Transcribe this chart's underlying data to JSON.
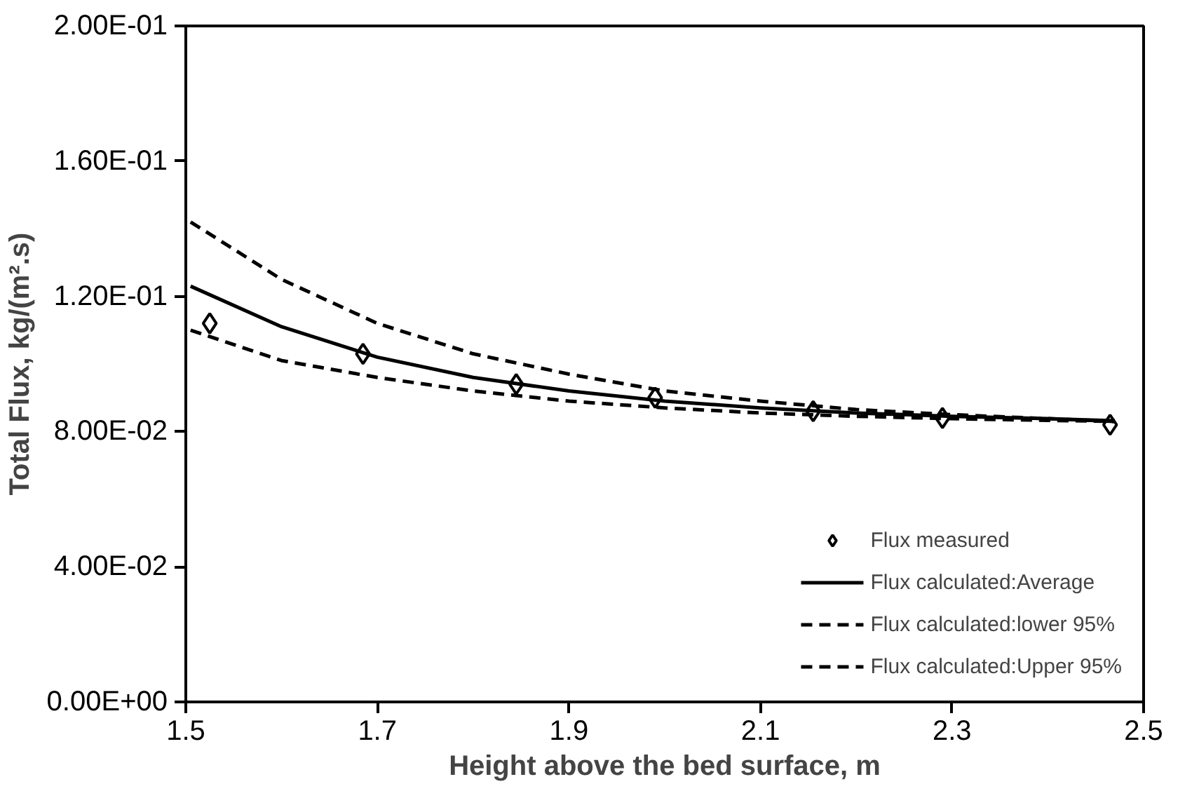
{
  "chart_data": {
    "type": "line",
    "xlabel": "Height above the bed surface, m",
    "ylabel": "Total Flux, kg/(m².s)",
    "xlim": [
      1.5,
      2.5
    ],
    "xticks": [
      1.5,
      1.7,
      1.9,
      2.1,
      2.3,
      2.5
    ],
    "ylim": [
      0,
      0.2
    ],
    "yticks": [
      {
        "value": 0,
        "label": "0.00E+00"
      },
      {
        "value": 0.04,
        "label": "4.00E-02"
      },
      {
        "value": 0.08,
        "label": "8.00E-02"
      },
      {
        "value": 0.12,
        "label": "1.20E-01"
      },
      {
        "value": 0.16,
        "label": "1.60E-01"
      },
      {
        "value": 0.2,
        "label": "2.00E-01"
      }
    ],
    "grid": false,
    "legend": "bottom right",
    "series": [
      {
        "name": "Flux measured",
        "type": "scatter",
        "marker": "diamond",
        "color": "#000000",
        "x": [
          1.525,
          1.685,
          1.845,
          1.99,
          2.155,
          2.29,
          2.465
        ],
        "values": [
          0.112,
          0.103,
          0.094,
          0.09,
          0.086,
          0.084,
          0.082
        ]
      },
      {
        "name": "Flux calculated:Average",
        "line_style": "solid",
        "color": "#000000",
        "x": [
          1.505,
          1.6,
          1.7,
          1.8,
          1.9,
          2.0,
          2.1,
          2.2,
          2.3,
          2.4,
          2.47
        ],
        "values": [
          0.123,
          0.111,
          0.102,
          0.096,
          0.092,
          0.089,
          0.087,
          0.0855,
          0.0845,
          0.0838,
          0.0832
        ]
      },
      {
        "name": "Flux calculated:lower 95%",
        "line_style": "dashed",
        "color": "#000000",
        "x": [
          1.505,
          1.6,
          1.7,
          1.8,
          1.9,
          2.0,
          2.1,
          2.2,
          2.3,
          2.4,
          2.47
        ],
        "values": [
          0.11,
          0.101,
          0.096,
          0.092,
          0.089,
          0.087,
          0.0855,
          0.0845,
          0.0838,
          0.0833,
          0.083
        ]
      },
      {
        "name": "Flux calculated:Upper 95%",
        "line_style": "dashed",
        "color": "#000000",
        "x": [
          1.505,
          1.6,
          1.7,
          1.8,
          1.9,
          2.0,
          2.1,
          2.2,
          2.3,
          2.4,
          2.47
        ],
        "values": [
          0.142,
          0.125,
          0.112,
          0.103,
          0.097,
          0.092,
          0.089,
          0.0865,
          0.085,
          0.0838,
          0.083
        ]
      }
    ]
  }
}
